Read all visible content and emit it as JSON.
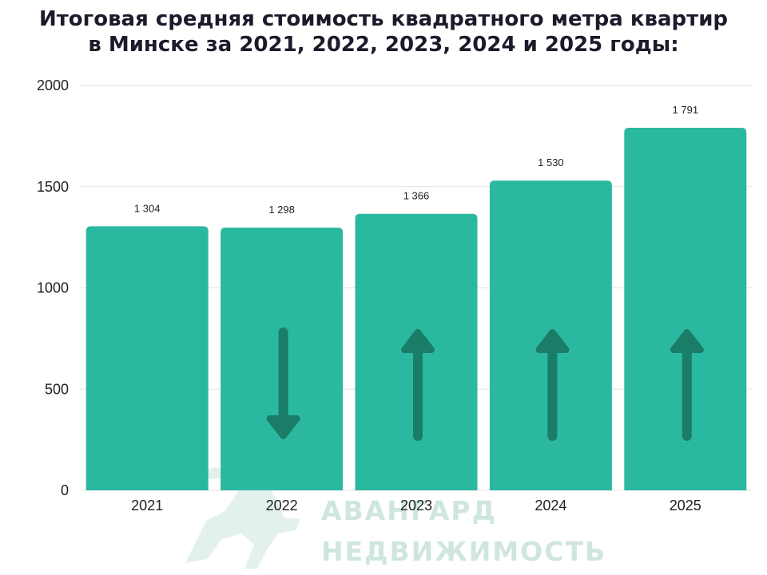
{
  "chart_data": {
    "type": "bar",
    "title_lines": [
      "Итоговая средняя стоимость квадратного метра квартир",
      "в Минске за 2021, 2022, 2023, 2024 и 2025 годы:"
    ],
    "categories": [
      "2021",
      "2022",
      "2023",
      "2024",
      "2025"
    ],
    "values": [
      1304,
      1298,
      1366,
      1530,
      1791
    ],
    "value_labels": [
      "1 304",
      "1 298",
      "1 366",
      "1 530",
      "1 791"
    ],
    "trend": [
      "none",
      "down",
      "up",
      "up",
      "up"
    ],
    "xlabel": "",
    "ylabel": "",
    "ylim": [
      0,
      2000
    ],
    "yticks": [
      0,
      500,
      1000,
      1500,
      2000
    ],
    "grid": true,
    "colors": {
      "bar": "#2bb8a0",
      "arrow": "#1a7d68",
      "grid": "#e3e3e3"
    }
  },
  "watermark": {
    "line1": "АВАНГАРД",
    "line2": "НЕДВИЖИМОСТЬ"
  }
}
